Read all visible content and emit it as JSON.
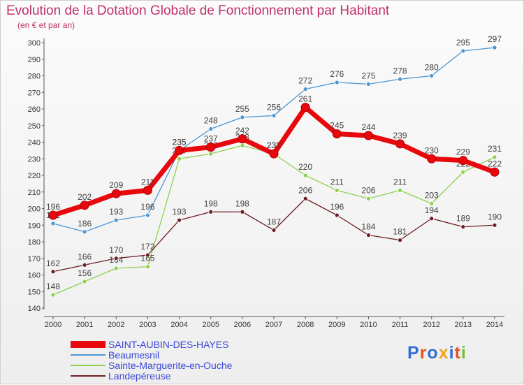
{
  "chart_data": {
    "type": "line",
    "title": "Evolution de la Dotation Globale de Fonctionnement par Habitant",
    "subtitle": "(en € et par an)",
    "categories": [
      "2000",
      "2001",
      "2002",
      "2003",
      "2004",
      "2005",
      "2006",
      "2007",
      "2008",
      "2009",
      "2010",
      "2011",
      "2012",
      "2013",
      "2014"
    ],
    "ylim": [
      140,
      300
    ],
    "yticks": [
      140,
      150,
      160,
      170,
      180,
      190,
      200,
      210,
      220,
      230,
      240,
      250,
      260,
      270,
      280,
      290,
      300
    ],
    "grid": false,
    "legend_position": "bottom-left",
    "series": [
      {
        "name": "SAINT-AUBIN-DES-HAYES",
        "color": "#e8070c",
        "values": [
          196,
          202,
          209,
          211,
          235,
          237,
          242,
          233,
          261,
          245,
          244,
          239,
          230,
          229,
          222
        ]
      },
      {
        "name": "Beaumesnil",
        "color": "#4b96d2",
        "values": [
          191,
          186,
          193,
          196,
          235,
          248,
          255,
          256,
          272,
          276,
          275,
          278,
          280,
          295,
          297
        ]
      },
      {
        "name": "Sainte-Marguerite-en-Ouche",
        "color": "#8ed04e",
        "values": [
          148,
          156,
          164,
          165,
          230,
          233,
          238,
          233,
          220,
          211,
          206,
          211,
          203,
          222,
          231
        ]
      },
      {
        "name": "Landepéreuse",
        "color": "#6b1d24",
        "values": [
          162,
          166,
          170,
          172,
          193,
          198,
          198,
          187,
          206,
          196,
          184,
          181,
          194,
          189,
          190
        ]
      }
    ]
  },
  "logo": {
    "letters": [
      "P",
      "r",
      "o",
      "x",
      "i",
      "t",
      "i"
    ],
    "colors": [
      "#2f6ed3",
      "#e8531a",
      "#2f6ed3",
      "#f2a51c",
      "#2f6ed3",
      "#e8531a",
      "#6fbf3a"
    ]
  }
}
